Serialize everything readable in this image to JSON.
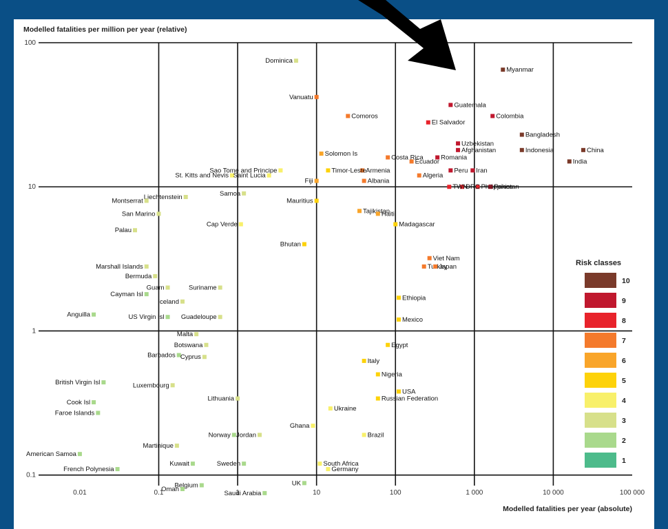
{
  "chart_data": {
    "type": "scatter",
    "xscale": "log",
    "yscale": "log",
    "xlim": [
      0.003,
      100000
    ],
    "ylim": [
      0.08,
      100
    ],
    "grid": true,
    "ylabel": "Modelled fatalities per million per year (relative)",
    "xlabel": "Modelled fatalities per year (absolute)",
    "x_ticks": [
      {
        "value": 0.01,
        "label": "0.01"
      },
      {
        "value": 0.1,
        "label": "0.1"
      },
      {
        "value": 1,
        "label": "1"
      },
      {
        "value": 10,
        "label": "10"
      },
      {
        "value": 100,
        "label": "100"
      },
      {
        "value": 1000,
        "label": "1 000"
      },
      {
        "value": 10000,
        "label": "10 000"
      },
      {
        "value": 100000,
        "label": "100 000"
      }
    ],
    "y_ticks": [
      {
        "value": 100,
        "label": "100"
      },
      {
        "value": 10,
        "label": "10"
      },
      {
        "value": 1,
        "label": "1"
      },
      {
        "value": 0.1,
        "label": "0.1"
      }
    ],
    "legend": {
      "title": "Risk classes",
      "placement": "right",
      "classes": [
        {
          "label": "10",
          "color": "#7a3a2a"
        },
        {
          "label": "9",
          "color": "#c0182e"
        },
        {
          "label": "8",
          "color": "#e8232b"
        },
        {
          "label": "7",
          "color": "#f47a2c"
        },
        {
          "label": "6",
          "color": "#f9a52a"
        },
        {
          "label": "5",
          "color": "#fdd20a"
        },
        {
          "label": "4",
          "color": "#f8f06a"
        },
        {
          "label": "3",
          "color": "#d7e08a"
        },
        {
          "label": "2",
          "color": "#a9d98c"
        },
        {
          "label": "1",
          "color": "#4dbb8b"
        }
      ]
    },
    "points": [
      {
        "name": "Myanmar",
        "x": 2300,
        "y": 65,
        "cls": 10
      },
      {
        "name": "Colombia",
        "x": 1700,
        "y": 31,
        "cls": 9
      },
      {
        "name": "Guatemala",
        "x": 500,
        "y": 37,
        "cls": 9
      },
      {
        "name": "El Salvador",
        "x": 260,
        "y": 28,
        "cls": 8
      },
      {
        "name": "Bangladesh",
        "x": 4000,
        "y": 23,
        "cls": 10
      },
      {
        "name": "China",
        "x": 24000,
        "y": 18,
        "cls": 10
      },
      {
        "name": "Indonesia",
        "x": 4000,
        "y": 18,
        "cls": 10
      },
      {
        "name": "India",
        "x": 16000,
        "y": 15,
        "cls": 10
      },
      {
        "name": "Uzbekistan",
        "x": 620,
        "y": 20,
        "cls": 9
      },
      {
        "name": "Afghanistan",
        "x": 620,
        "y": 18,
        "cls": 9
      },
      {
        "name": "Romania",
        "x": 340,
        "y": 16,
        "cls": 9
      },
      {
        "name": "Iran",
        "x": 950,
        "y": 13,
        "cls": 9
      },
      {
        "name": "Peru",
        "x": 500,
        "y": 13,
        "cls": 9
      },
      {
        "name": "Pakistan",
        "x": 1600,
        "y": 10,
        "cls": 9
      },
      {
        "name": "Philippines",
        "x": 1100,
        "y": 10,
        "cls": 8
      },
      {
        "name": "DRC",
        "x": 700,
        "y": 10,
        "cls": 8
      },
      {
        "name": "TWN",
        "x": 480,
        "y": 10,
        "cls": 8
      },
      {
        "name": "Costa Rica",
        "x": 80,
        "y": 16,
        "cls": 7
      },
      {
        "name": "Ecuador",
        "x": 160,
        "y": 15,
        "cls": 7
      },
      {
        "name": "Armenia",
        "x": 38,
        "y": 13,
        "cls": 7
      },
      {
        "name": "Albania",
        "x": 40,
        "y": 11,
        "cls": 7
      },
      {
        "name": "Algeria",
        "x": 200,
        "y": 12,
        "cls": 7
      },
      {
        "name": "Comoros",
        "x": 25,
        "y": 31,
        "cls": 7
      },
      {
        "name": "Vanuatu",
        "x": 10,
        "y": 42,
        "cls": 7
      },
      {
        "name": "Dominica",
        "x": 5.5,
        "y": 75,
        "cls": 3
      },
      {
        "name": "Solomon Is",
        "x": 11.5,
        "y": 17,
        "cls": 6
      },
      {
        "name": "Timor-Leste",
        "x": 14,
        "y": 13,
        "cls": 5
      },
      {
        "name": "Fiji",
        "x": 10,
        "y": 11,
        "cls": 6
      },
      {
        "name": "Sao Tome and Principe",
        "x": 3.5,
        "y": 13,
        "cls": 4
      },
      {
        "name": "St. Kitts and Nevis",
        "x": 0.85,
        "y": 12,
        "cls": 4
      },
      {
        "name": "Saint Lucia",
        "x": 2.5,
        "y": 12,
        "cls": 4
      },
      {
        "name": "Samoa",
        "x": 1.2,
        "y": 9,
        "cls": 3
      },
      {
        "name": "Liechtenstein",
        "x": 0.22,
        "y": 8.5,
        "cls": 3
      },
      {
        "name": "Montserrat",
        "x": 0.07,
        "y": 8,
        "cls": 3
      },
      {
        "name": "San Marino",
        "x": 0.1,
        "y": 6.5,
        "cls": 3
      },
      {
        "name": "Palau",
        "x": 0.05,
        "y": 5,
        "cls": 3
      },
      {
        "name": "Cap Verde",
        "x": 1.1,
        "y": 5.5,
        "cls": 4
      },
      {
        "name": "Mauritius",
        "x": 10,
        "y": 8,
        "cls": 5
      },
      {
        "name": "Tajikistan",
        "x": 35,
        "y": 6.8,
        "cls": 6
      },
      {
        "name": "Haiti",
        "x": 60,
        "y": 6.5,
        "cls": 6
      },
      {
        "name": "Madagascar",
        "x": 100,
        "y": 5.5,
        "cls": 5
      },
      {
        "name": "Bhutan",
        "x": 7,
        "y": 4,
        "cls": 5
      },
      {
        "name": "Viet Nam",
        "x": 270,
        "y": 3.2,
        "cls": 7
      },
      {
        "name": "Turkey",
        "x": 230,
        "y": 2.8,
        "cls": 7
      },
      {
        "name": "Japan",
        "x": 320,
        "y": 2.8,
        "cls": 7
      },
      {
        "name": "Marshall Islands",
        "x": 0.07,
        "y": 2.8,
        "cls": 3
      },
      {
        "name": "Bermuda",
        "x": 0.09,
        "y": 2.4,
        "cls": 3
      },
      {
        "name": "Guam",
        "x": 0.13,
        "y": 2.0,
        "cls": 3
      },
      {
        "name": "Suriname",
        "x": 0.6,
        "y": 2.0,
        "cls": 3
      },
      {
        "name": "Cayman Isl",
        "x": 0.07,
        "y": 1.8,
        "cls": 2
      },
      {
        "name": "Iceland",
        "x": 0.2,
        "y": 1.6,
        "cls": 3
      },
      {
        "name": "Anguilla",
        "x": 0.015,
        "y": 1.3,
        "cls": 2
      },
      {
        "name": "US Virgin Isl",
        "x": 0.13,
        "y": 1.25,
        "cls": 2
      },
      {
        "name": "Guadeloupe",
        "x": 0.6,
        "y": 1.25,
        "cls": 3
      },
      {
        "name": "Ethiopia",
        "x": 110,
        "y": 1.7,
        "cls": 5
      },
      {
        "name": "Mexico",
        "x": 110,
        "y": 1.2,
        "cls": 5
      },
      {
        "name": "Malta",
        "x": 0.3,
        "y": 0.95,
        "cls": 3
      },
      {
        "name": "Botswana",
        "x": 0.4,
        "y": 0.8,
        "cls": 3
      },
      {
        "name": "Barbados",
        "x": 0.18,
        "y": 0.68,
        "cls": 2
      },
      {
        "name": "Cyprus",
        "x": 0.38,
        "y": 0.66,
        "cls": 3
      },
      {
        "name": "Egypt",
        "x": 80,
        "y": 0.8,
        "cls": 5
      },
      {
        "name": "Italy",
        "x": 40,
        "y": 0.62,
        "cls": 5
      },
      {
        "name": "Nigeria",
        "x": 60,
        "y": 0.5,
        "cls": 5
      },
      {
        "name": "USA",
        "x": 110,
        "y": 0.38,
        "cls": 5
      },
      {
        "name": "Russian Federation",
        "x": 60,
        "y": 0.34,
        "cls": 5
      },
      {
        "name": "British Virgin Isl",
        "x": 0.02,
        "y": 0.44,
        "cls": 2
      },
      {
        "name": "Luxembourg",
        "x": 0.15,
        "y": 0.42,
        "cls": 3
      },
      {
        "name": "Lithuania",
        "x": 1.0,
        "y": 0.34,
        "cls": 3
      },
      {
        "name": "Cook Isl",
        "x": 0.015,
        "y": 0.32,
        "cls": 2
      },
      {
        "name": "Faroe Islands",
        "x": 0.017,
        "y": 0.27,
        "cls": 2
      },
      {
        "name": "Ukraine",
        "x": 15,
        "y": 0.29,
        "cls": 4
      },
      {
        "name": "Ghana",
        "x": 9,
        "y": 0.22,
        "cls": 4
      },
      {
        "name": "Brazil",
        "x": 40,
        "y": 0.19,
        "cls": 4
      },
      {
        "name": "Norway",
        "x": 0.9,
        "y": 0.19,
        "cls": 2
      },
      {
        "name": "Jordan",
        "x": 1.9,
        "y": 0.19,
        "cls": 3
      },
      {
        "name": "Martinique",
        "x": 0.17,
        "y": 0.16,
        "cls": 3
      },
      {
        "name": "American Samoa",
        "x": 0.01,
        "y": 0.14,
        "cls": 2
      },
      {
        "name": "Kuwait",
        "x": 0.27,
        "y": 0.12,
        "cls": 2
      },
      {
        "name": "Sweden",
        "x": 1.2,
        "y": 0.12,
        "cls": 2
      },
      {
        "name": "South Africa",
        "x": 11,
        "y": 0.12,
        "cls": 4
      },
      {
        "name": "Germany",
        "x": 14,
        "y": 0.11,
        "cls": 4
      },
      {
        "name": "French Polynesia",
        "x": 0.03,
        "y": 0.11,
        "cls": 2
      },
      {
        "name": "Belgium",
        "x": 0.35,
        "y": 0.085,
        "cls": 2
      },
      {
        "name": "Oman",
        "x": 0.2,
        "y": 0.08,
        "cls": 2
      },
      {
        "name": "UK",
        "x": 7,
        "y": 0.088,
        "cls": 2
      },
      {
        "name": "Saudi Arabia",
        "x": 2.2,
        "y": 0.075,
        "cls": 2
      }
    ]
  }
}
